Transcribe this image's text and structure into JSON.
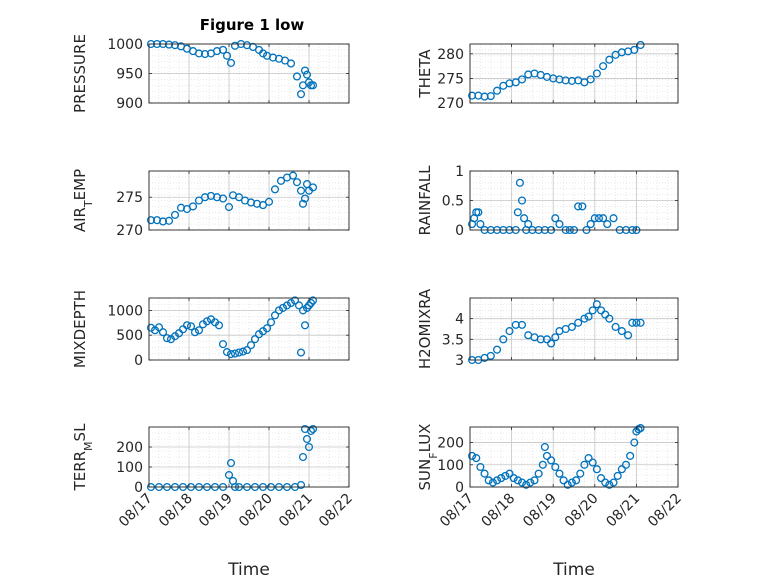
{
  "figure_title": "Figure 1 low",
  "marker_color": "#0072BD",
  "time_tick_labels": [
    "08/17",
    "08/18",
    "08/19",
    "08/20",
    "08/21",
    "08/22"
  ],
  "chart_data": [
    {
      "type": "scatter",
      "ylabel": "PRESSURE",
      "title": "Figure 1 low",
      "xlabel": "",
      "grid": true,
      "xlim": [
        0,
        5
      ],
      "ylim": [
        900,
        1000
      ],
      "yticks": [
        900,
        950,
        1000
      ],
      "x": [
        0.05,
        0.2,
        0.35,
        0.5,
        0.65,
        0.8,
        0.95,
        1.1,
        1.25,
        1.4,
        1.55,
        1.7,
        1.85,
        1.95,
        2.05,
        2.15,
        2.3,
        2.45,
        2.6,
        2.75,
        2.85,
        2.95,
        3.1,
        3.25,
        3.4,
        3.55,
        3.7,
        3.8,
        3.85,
        3.9,
        3.95,
        4.0,
        4.05,
        4.1
      ],
      "y": [
        1000,
        1000,
        1000,
        999,
        998,
        996,
        992,
        988,
        984,
        983,
        984,
        988,
        990,
        980,
        968,
        997,
        1000,
        998,
        995,
        990,
        984,
        980,
        977,
        975,
        972,
        967,
        945,
        915,
        930,
        955,
        948,
        935,
        930,
        930
      ]
    },
    {
      "type": "scatter",
      "ylabel": "THETA",
      "xlabel": "",
      "grid": true,
      "xlim": [
        0,
        5
      ],
      "ylim": [
        270,
        282
      ],
      "yticks": [
        270,
        275,
        280
      ],
      "x": [
        0.05,
        0.2,
        0.35,
        0.5,
        0.65,
        0.8,
        0.95,
        1.1,
        1.25,
        1.4,
        1.55,
        1.7,
        1.85,
        2.0,
        2.15,
        2.3,
        2.45,
        2.6,
        2.75,
        2.9,
        3.05,
        3.2,
        3.35,
        3.5,
        3.65,
        3.8,
        3.95,
        4.1
      ],
      "y": [
        271.5,
        271.5,
        271.3,
        271.4,
        272.5,
        273.5,
        274,
        274.2,
        274.8,
        275.8,
        276,
        275.7,
        275.3,
        275,
        274.8,
        274.6,
        274.5,
        274.6,
        274.2,
        274.8,
        276,
        277.5,
        278.8,
        279.8,
        280.3,
        280.5,
        280.8,
        281.8
      ]
    },
    {
      "type": "scatter",
      "ylabel": "AIR_TEMP",
      "ylabel_parts": [
        "AIR",
        "T",
        "EMP"
      ],
      "xlabel": "",
      "grid": true,
      "xlim": [
        0,
        5
      ],
      "ylim": [
        270,
        279
      ],
      "yticks": [
        270,
        275
      ],
      "x": [
        0.05,
        0.2,
        0.35,
        0.5,
        0.65,
        0.8,
        0.95,
        1.1,
        1.25,
        1.4,
        1.55,
        1.7,
        1.85,
        2.0,
        2.1,
        2.25,
        2.4,
        2.55,
        2.7,
        2.85,
        3.0,
        3.15,
        3.3,
        3.45,
        3.6,
        3.7,
        3.8,
        3.85,
        3.9,
        3.95,
        4.0,
        4.1
      ],
      "y": [
        271.5,
        271.5,
        271.3,
        271.4,
        272.3,
        273.4,
        273.2,
        273.6,
        274.5,
        275,
        275.2,
        275,
        274.8,
        273.5,
        275.3,
        275,
        274.5,
        274.2,
        274,
        273.8,
        274.3,
        276.2,
        277.5,
        278,
        278.3,
        277.3,
        276,
        274,
        274.8,
        277,
        276,
        276.5
      ]
    },
    {
      "type": "scatter",
      "ylabel": "RAINFALL",
      "xlabel": "",
      "grid": true,
      "xlim": [
        0,
        5
      ],
      "ylim": [
        0,
        1
      ],
      "yticks": [
        0,
        0.5,
        1
      ],
      "x": [
        0.05,
        0.1,
        0.15,
        0.2,
        0.25,
        0.35,
        0.5,
        0.65,
        0.8,
        0.95,
        1.1,
        1.15,
        1.2,
        1.25,
        1.3,
        1.35,
        1.4,
        1.5,
        1.65,
        1.8,
        1.95,
        2.05,
        2.15,
        2.3,
        2.4,
        2.5,
        2.6,
        2.7,
        2.8,
        2.9,
        3.0,
        3.1,
        3.2,
        3.3,
        3.45,
        3.6,
        3.75,
        3.9,
        4.0
      ],
      "y": [
        0.1,
        0.2,
        0.3,
        0.3,
        0.1,
        0,
        0,
        0,
        0,
        0,
        0,
        0.3,
        0.8,
        0.5,
        0.2,
        0,
        0.1,
        0,
        0,
        0,
        0,
        0.2,
        0.1,
        0,
        0,
        0,
        0.4,
        0.4,
        0,
        0.1,
        0.2,
        0.2,
        0.2,
        0.1,
        0.2,
        0,
        0,
        0,
        0
      ]
    },
    {
      "type": "scatter",
      "ylabel": "MIXDEPTH",
      "xlabel": "",
      "grid": true,
      "xlim": [
        0,
        5
      ],
      "ylim": [
        0,
        1250
      ],
      "yticks": [
        0,
        500,
        1000
      ],
      "x": [
        0.05,
        0.15,
        0.25,
        0.35,
        0.45,
        0.55,
        0.65,
        0.75,
        0.85,
        0.95,
        1.05,
        1.15,
        1.25,
        1.35,
        1.45,
        1.55,
        1.65,
        1.75,
        1.85,
        1.95,
        2.05,
        2.15,
        2.25,
        2.35,
        2.45,
        2.55,
        2.65,
        2.75,
        2.85,
        2.95,
        3.05,
        3.15,
        3.25,
        3.35,
        3.45,
        3.55,
        3.65,
        3.75,
        3.8,
        3.85,
        3.9,
        3.95,
        4.0,
        4.05,
        4.1
      ],
      "y": [
        650,
        600,
        660,
        560,
        440,
        420,
        480,
        540,
        620,
        700,
        680,
        560,
        600,
        720,
        780,
        820,
        760,
        700,
        320,
        160,
        120,
        130,
        150,
        170,
        200,
        300,
        420,
        520,
        580,
        640,
        760,
        900,
        1000,
        1050,
        1100,
        1150,
        1200,
        1100,
        150,
        1000,
        700,
        1050,
        1100,
        1150,
        1200
      ]
    },
    {
      "type": "scatter",
      "ylabel": "H2OMIXRA",
      "xlabel": "",
      "grid": true,
      "xlim": [
        0,
        5
      ],
      "ylim": [
        3,
        4.5
      ],
      "yticks": [
        3,
        3.5,
        4
      ],
      "x": [
        0.05,
        0.2,
        0.35,
        0.5,
        0.65,
        0.8,
        0.95,
        1.1,
        1.25,
        1.4,
        1.55,
        1.7,
        1.85,
        1.95,
        2.05,
        2.15,
        2.3,
        2.45,
        2.6,
        2.75,
        2.85,
        2.95,
        3.05,
        3.15,
        3.25,
        3.35,
        3.5,
        3.65,
        3.8,
        3.9,
        4.0,
        4.1
      ],
      "y": [
        3,
        3,
        3.05,
        3.1,
        3.25,
        3.5,
        3.7,
        3.85,
        3.85,
        3.6,
        3.55,
        3.5,
        3.5,
        3.4,
        3.55,
        3.7,
        3.75,
        3.8,
        3.9,
        4,
        4.05,
        4.2,
        4.35,
        4.2,
        4.1,
        4,
        3.8,
        3.7,
        3.6,
        3.9,
        3.9,
        3.9
      ]
    },
    {
      "type": "scatter",
      "ylabel": "TERR_MSL",
      "ylabel_parts": [
        "TERR",
        "M",
        "SL"
      ],
      "xlabel": "Time",
      "grid": true,
      "xlim": [
        0,
        5
      ],
      "ylim": [
        0,
        300
      ],
      "yticks": [
        0,
        100,
        200
      ],
      "x": [
        0.05,
        0.25,
        0.45,
        0.65,
        0.85,
        1.05,
        1.25,
        1.45,
        1.65,
        1.85,
        2.0,
        2.05,
        2.1,
        2.15,
        2.25,
        2.45,
        2.65,
        2.85,
        3.05,
        3.25,
        3.45,
        3.65,
        3.8,
        3.85,
        3.9,
        3.95,
        4.0,
        4.05,
        4.1
      ],
      "y": [
        0,
        0,
        0,
        0,
        0,
        0,
        0,
        0,
        0,
        0,
        60,
        120,
        30,
        0,
        0,
        0,
        0,
        0,
        0,
        0,
        0,
        0,
        10,
        150,
        290,
        240,
        200,
        280,
        290
      ]
    },
    {
      "type": "scatter",
      "ylabel": "SUN_FLUX",
      "ylabel_parts": [
        "SUN",
        "F",
        "LUX"
      ],
      "xlabel": "Time",
      "grid": true,
      "xlim": [
        0,
        5
      ],
      "ylim": [
        0,
        270
      ],
      "yticks": [
        0,
        100,
        200
      ],
      "x": [
        0.05,
        0.15,
        0.25,
        0.35,
        0.45,
        0.55,
        0.65,
        0.75,
        0.85,
        0.95,
        1.05,
        1.15,
        1.25,
        1.35,
        1.45,
        1.55,
        1.65,
        1.75,
        1.8,
        1.85,
        1.95,
        2.05,
        2.15,
        2.25,
        2.35,
        2.45,
        2.55,
        2.65,
        2.75,
        2.85,
        2.95,
        3.05,
        3.15,
        3.25,
        3.35,
        3.45,
        3.55,
        3.65,
        3.75,
        3.85,
        3.95,
        4.0,
        4.05,
        4.1
      ],
      "y": [
        140,
        130,
        90,
        60,
        30,
        20,
        30,
        40,
        50,
        60,
        40,
        30,
        20,
        10,
        20,
        30,
        60,
        100,
        180,
        140,
        120,
        90,
        60,
        30,
        10,
        20,
        30,
        60,
        100,
        130,
        110,
        80,
        40,
        20,
        10,
        20,
        50,
        80,
        100,
        140,
        200,
        250,
        260,
        265
      ]
    }
  ]
}
